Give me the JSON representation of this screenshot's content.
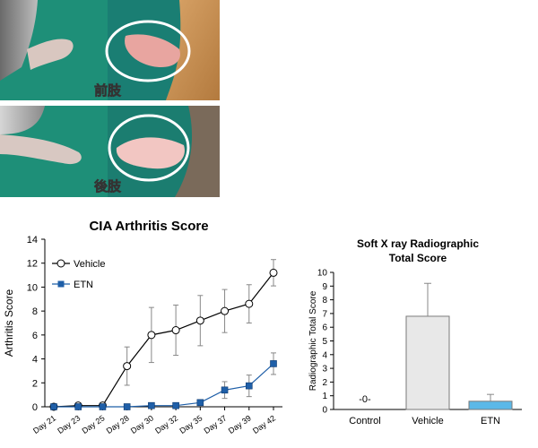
{
  "photos": {
    "forelimb_label": "前肢",
    "hindlimb_label": "後肢",
    "colors": {
      "bg_left": "#1e8f78",
      "fur_right": "#c98e52",
      "paw_pink": "#e8a5a0",
      "circle": "#ffffff"
    }
  },
  "chart_data": [
    {
      "type": "line",
      "title": "CIA Arthritis Score",
      "ylabel": "Arthritis Score",
      "xlabel": "",
      "categories": [
        "Day 21",
        "Day 23",
        "Day 25",
        "Day 28",
        "Day 30",
        "Day 32",
        "Day 35",
        "Day 37",
        "Day 39",
        "Day 42"
      ],
      "ylim": [
        0,
        14
      ],
      "yticks": [
        0,
        2,
        4,
        6,
        8,
        10,
        12,
        14
      ],
      "legend_position": "top-left",
      "series": [
        {
          "name": "Vehicle",
          "marker": "circle-open",
          "color": "#000000",
          "values": [
            0,
            0.1,
            0.1,
            3.4,
            6.0,
            6.4,
            7.2,
            8.0,
            8.6,
            11.2
          ],
          "errors": [
            0,
            0.1,
            0.1,
            1.6,
            2.3,
            2.1,
            2.1,
            1.8,
            1.6,
            1.1
          ]
        },
        {
          "name": "ETN",
          "marker": "square-filled",
          "color": "#1f5fa8",
          "values": [
            0,
            0,
            0,
            0,
            0.1,
            0.1,
            0.35,
            1.4,
            1.75,
            3.6
          ],
          "errors": [
            0,
            0,
            0,
            0,
            0.05,
            0.05,
            0.2,
            0.7,
            0.9,
            0.9
          ]
        }
      ]
    },
    {
      "type": "bar",
      "title": [
        "Soft X ray Radiographic",
        "Total Score"
      ],
      "ylabel": "Radiographic Total Score",
      "xlabel": "",
      "categories": [
        "Control",
        "Vehicle",
        "ETN"
      ],
      "values": [
        0,
        6.8,
        0.6
      ],
      "errors": [
        0,
        2.4,
        0.5
      ],
      "value_annotations": [
        "-0-",
        "",
        ""
      ],
      "ylim": [
        0,
        10
      ],
      "yticks": [
        0,
        1,
        2,
        3,
        4,
        5,
        6,
        7,
        8,
        9,
        10
      ],
      "colors": [
        "#ffffff",
        "#e8e8e8",
        "#5bb8e8"
      ]
    }
  ]
}
